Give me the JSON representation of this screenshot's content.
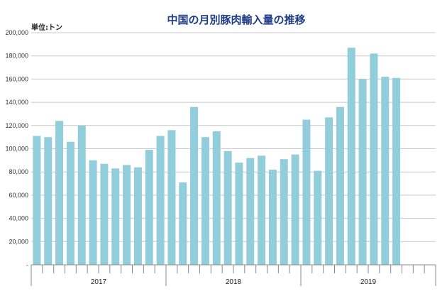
{
  "chart_data": {
    "type": "bar",
    "title": "中国の月別豚肉輸入量の推移",
    "unit_label": "単位:トン",
    "ylim": [
      0,
      200000
    ],
    "yticks": [
      "-",
      "20,000",
      "40,000",
      "60,000",
      "80,000",
      "100,000",
      "120,000",
      "140,000",
      "160,000",
      "180,000",
      "200,000"
    ],
    "years": [
      "2017",
      "2018",
      "2019"
    ],
    "months_per_year": 12,
    "grid": true,
    "values": [
      111000,
      110000,
      124000,
      106000,
      120000,
      90000,
      87000,
      83000,
      86000,
      84000,
      99000,
      111000,
      116000,
      71000,
      136000,
      110000,
      115000,
      98000,
      88000,
      92000,
      94000,
      82000,
      91000,
      95000,
      125000,
      81000,
      127000,
      136000,
      187000,
      160000,
      182000,
      162000,
      161000
    ],
    "bar_color": "#92cddc"
  }
}
